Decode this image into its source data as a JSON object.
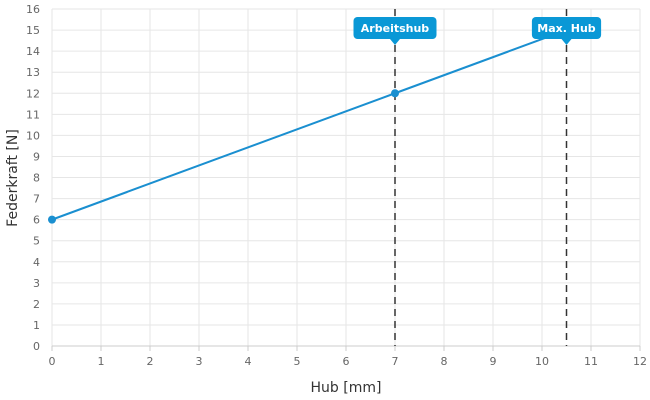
{
  "chart_data": {
    "type": "line",
    "xlabel": "Hub [mm]",
    "ylabel": "Federkraft [N]",
    "xlim": [
      0,
      12
    ],
    "ylim": [
      0,
      16
    ],
    "x_ticks": [
      "0",
      "1",
      "2",
      "3",
      "4",
      "5",
      "6",
      "7",
      "8",
      "9",
      "10",
      "11",
      "12"
    ],
    "y_ticks": [
      "0",
      "1",
      "2",
      "3",
      "4",
      "5",
      "6",
      "7",
      "8",
      "9",
      "10",
      "11",
      "12",
      "13",
      "14",
      "15",
      "16"
    ],
    "grid": true,
    "series": [
      {
        "color": "#1a8fd0",
        "x": [
          0,
          7,
          10.5
        ],
        "y": [
          6,
          12,
          15
        ]
      }
    ],
    "points": [
      {
        "x": 0,
        "y": 6
      },
      {
        "x": 7,
        "y": 12
      }
    ],
    "markers": [
      {
        "x": 7,
        "label": "Arbeitshub"
      },
      {
        "x": 10.5,
        "label": "Max. Hub"
      }
    ],
    "accent_color": "#0a98d6"
  }
}
